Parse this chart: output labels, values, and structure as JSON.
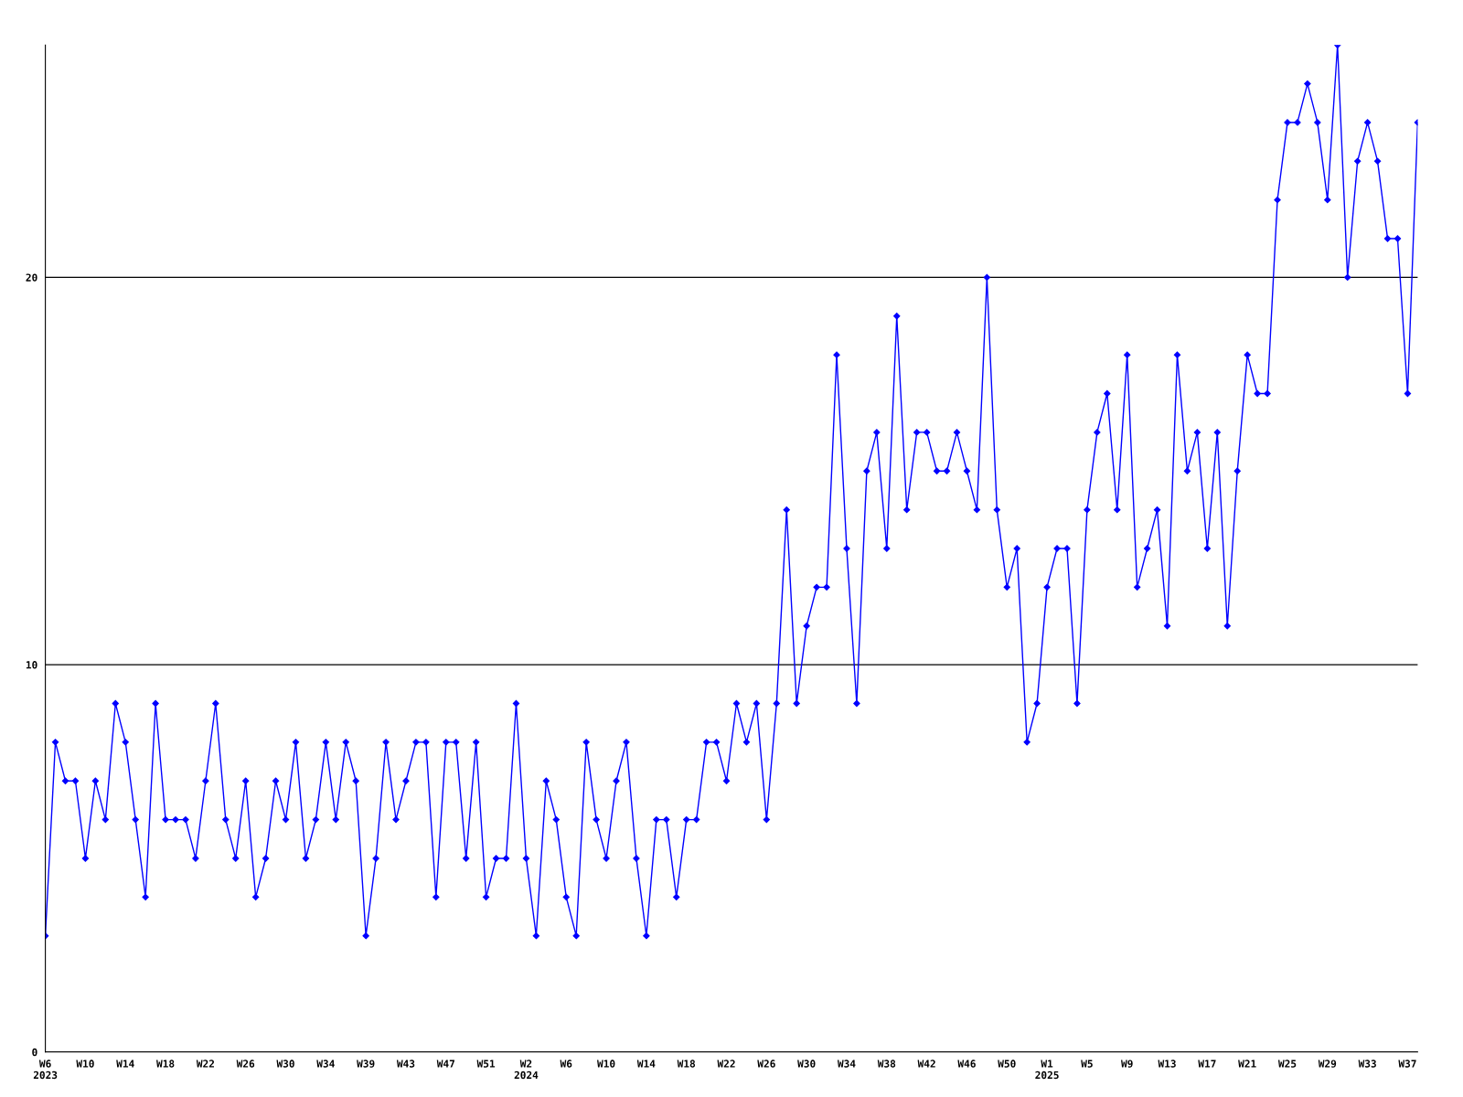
{
  "chart_data": {
    "type": "line",
    "categories": [
      "W6\n2023",
      null,
      null,
      null,
      "W10",
      null,
      null,
      null,
      "W14",
      null,
      null,
      null,
      "W18",
      null,
      null,
      null,
      "W22",
      null,
      null,
      null,
      "W26",
      null,
      null,
      null,
      "W30",
      null,
      null,
      null,
      "W34",
      null,
      null,
      null,
      "W39",
      null,
      null,
      null,
      "W43",
      null,
      null,
      null,
      "W47",
      null,
      null,
      null,
      "W51",
      null,
      null,
      null,
      "W2\n2024",
      null,
      null,
      null,
      "W6",
      null,
      null,
      null,
      "W10",
      null,
      null,
      null,
      "W14",
      null,
      null,
      null,
      "W18",
      null,
      null,
      null,
      "W22",
      null,
      null,
      null,
      "W26",
      null,
      null,
      null,
      "W30",
      null,
      null,
      null,
      "W34",
      null,
      null,
      null,
      "W38",
      null,
      null,
      null,
      "W42",
      null,
      null,
      null,
      "W46",
      null,
      null,
      null,
      "W50",
      null,
      null,
      null,
      "W1\n2025",
      null,
      null,
      null,
      "W5",
      null,
      null,
      null,
      "W9",
      null,
      null,
      null,
      "W13",
      null,
      null,
      null,
      "W17",
      null,
      null,
      null,
      "W21",
      null,
      null,
      null,
      "W25",
      null,
      null,
      null,
      "W29",
      null,
      null,
      null,
      "W33",
      null,
      null,
      null,
      "W37",
      null
    ],
    "series": [
      {
        "color": "#0000ff",
        "values": [
          3,
          8,
          7,
          7,
          5,
          7,
          6,
          9,
          8,
          6,
          4,
          9,
          6,
          6,
          6,
          5,
          7,
          9,
          6,
          5,
          7,
          4,
          5,
          7,
          6,
          8,
          5,
          6,
          8,
          6,
          8,
          7,
          3,
          5,
          8,
          6,
          7,
          8,
          8,
          4,
          8,
          8,
          5,
          8,
          4,
          5,
          5,
          9,
          5,
          3,
          7,
          6,
          4,
          3,
          8,
          6,
          5,
          7,
          8,
          5,
          3,
          6,
          6,
          4,
          6,
          6,
          8,
          8,
          7,
          9,
          8,
          9,
          6,
          9,
          14,
          9,
          11,
          12,
          12,
          18,
          13,
          9,
          15,
          16,
          13,
          19,
          14,
          16,
          16,
          15,
          15,
          16,
          15,
          14,
          20,
          14,
          12,
          13,
          8,
          9,
          12,
          13,
          13,
          9,
          14,
          16,
          17,
          14,
          18,
          12,
          13,
          14,
          11,
          18,
          15,
          16,
          13,
          16,
          11,
          15,
          18,
          17,
          17,
          22,
          24,
          24,
          25,
          24,
          22,
          26,
          20,
          23,
          24,
          23,
          21,
          21,
          17,
          24
        ]
      }
    ],
    "ylim": [
      0,
      26
    ],
    "yticks": [
      0,
      10,
      20
    ],
    "grid": "y",
    "marker": "diamond",
    "line_style": "solid"
  }
}
